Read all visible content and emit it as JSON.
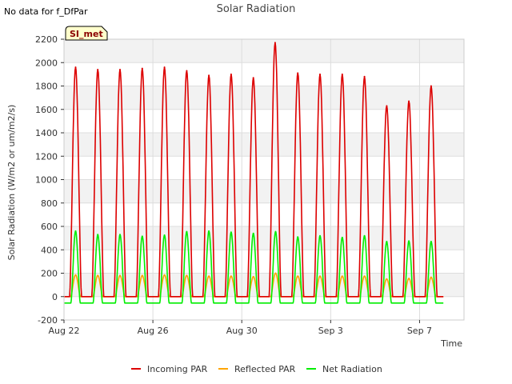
{
  "chart_data": {
    "type": "line",
    "title": "Solar Radiation",
    "xlabel": "Time",
    "ylabel": "Solar Radiation (W/m2 or um/m2/s)",
    "note": "No data for f_DfPar",
    "badge": "SI_met",
    "ylim": [
      -200,
      2200
    ],
    "yticks": [
      -200,
      0,
      200,
      400,
      600,
      800,
      1000,
      1200,
      1400,
      1600,
      1800,
      2000,
      2200
    ],
    "xlim": [
      "2023-08-22",
      "2023-09-09"
    ],
    "xticks": [
      {
        "label": "Aug 22",
        "date": "2023-08-22"
      },
      {
        "label": "Aug 26",
        "date": "2023-08-26"
      },
      {
        "label": "Aug 30",
        "date": "2023-08-30"
      },
      {
        "label": "Sep 3",
        "date": "2023-09-03"
      },
      {
        "label": "Sep 7",
        "date": "2023-09-07"
      }
    ],
    "grid": true,
    "legend_position": "bottom",
    "series": [
      {
        "name": "Incoming PAR",
        "color": "#dd0000",
        "values": [
          {
            "x": "2023-08-22T12:30",
            "y": 1960
          },
          {
            "x": "2023-08-23T12:30",
            "y": 1940
          },
          {
            "x": "2023-08-24T12:30",
            "y": 1940
          },
          {
            "x": "2023-08-25T12:30",
            "y": 1950
          },
          {
            "x": "2023-08-26T12:30",
            "y": 1960
          },
          {
            "x": "2023-08-27T12:30",
            "y": 1930
          },
          {
            "x": "2023-08-28T12:30",
            "y": 1890
          },
          {
            "x": "2023-08-29T12:30",
            "y": 1900
          },
          {
            "x": "2023-08-30T12:30",
            "y": 1870
          },
          {
            "x": "2023-08-31T12:00",
            "y": 2170
          },
          {
            "x": "2023-09-01T12:30",
            "y": 1910
          },
          {
            "x": "2023-09-02T12:30",
            "y": 1900
          },
          {
            "x": "2023-09-03T12:30",
            "y": 1900
          },
          {
            "x": "2023-09-04T12:30",
            "y": 1880
          },
          {
            "x": "2023-09-05T12:30",
            "y": 1630
          },
          {
            "x": "2023-09-06T12:30",
            "y": 1670
          },
          {
            "x": "2023-09-07T12:30",
            "y": 1800
          }
        ]
      },
      {
        "name": "Reflected PAR",
        "color": "#ffa500",
        "values": [
          {
            "x": "2023-08-22T12:30",
            "y": 185
          },
          {
            "x": "2023-08-23T12:30",
            "y": 180
          },
          {
            "x": "2023-08-24T12:30",
            "y": 180
          },
          {
            "x": "2023-08-25T12:30",
            "y": 180
          },
          {
            "x": "2023-08-26T12:30",
            "y": 185
          },
          {
            "x": "2023-08-27T12:30",
            "y": 180
          },
          {
            "x": "2023-08-28T12:30",
            "y": 175
          },
          {
            "x": "2023-08-29T12:30",
            "y": 175
          },
          {
            "x": "2023-08-30T12:30",
            "y": 170
          },
          {
            "x": "2023-08-31T12:30",
            "y": 200
          },
          {
            "x": "2023-09-01T12:30",
            "y": 175
          },
          {
            "x": "2023-09-02T12:30",
            "y": 175
          },
          {
            "x": "2023-09-03T12:30",
            "y": 175
          },
          {
            "x": "2023-09-04T12:30",
            "y": 175
          },
          {
            "x": "2023-09-05T12:30",
            "y": 150
          },
          {
            "x": "2023-09-06T12:30",
            "y": 155
          },
          {
            "x": "2023-09-07T12:30",
            "y": 165
          }
        ]
      },
      {
        "name": "Net Radiation",
        "color": "#00ee00",
        "values": [
          {
            "x": "2023-08-22T12:30",
            "y": 560
          },
          {
            "x": "2023-08-23T12:30",
            "y": 530
          },
          {
            "x": "2023-08-24T12:30",
            "y": 530
          },
          {
            "x": "2023-08-25T12:30",
            "y": 515
          },
          {
            "x": "2023-08-26T12:30",
            "y": 525
          },
          {
            "x": "2023-08-27T12:30",
            "y": 555
          },
          {
            "x": "2023-08-28T12:30",
            "y": 560
          },
          {
            "x": "2023-08-29T12:30",
            "y": 550
          },
          {
            "x": "2023-08-30T12:30",
            "y": 540
          },
          {
            "x": "2023-08-31T12:30",
            "y": 555
          },
          {
            "x": "2023-09-01T12:30",
            "y": 510
          },
          {
            "x": "2023-09-02T12:30",
            "y": 520
          },
          {
            "x": "2023-09-03T12:30",
            "y": 505
          },
          {
            "x": "2023-09-04T12:30",
            "y": 520
          },
          {
            "x": "2023-09-05T12:30",
            "y": 470
          },
          {
            "x": "2023-09-06T12:30",
            "y": 475
          },
          {
            "x": "2023-09-07T12:30",
            "y": 470
          }
        ]
      }
    ]
  }
}
